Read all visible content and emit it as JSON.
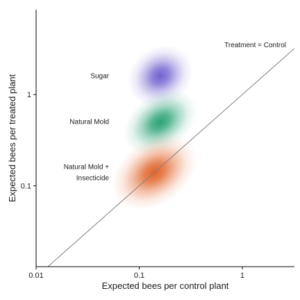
{
  "chart_data": {
    "type": "scatter",
    "render_style": "density-blob",
    "xlabel": "Expected bees per control plant",
    "ylabel": "Expected bees per treated plant",
    "x_scale": "log",
    "y_scale": "log",
    "xlim": [
      0.01,
      3.2
    ],
    "ylim": [
      0.013,
      8.5
    ],
    "x_ticks": [
      {
        "value": 0.01,
        "label": "0.01"
      },
      {
        "value": 0.1,
        "label": "0.1"
      },
      {
        "value": 1,
        "label": "1"
      }
    ],
    "y_ticks": [
      {
        "value": 0.1,
        "label": "0.1"
      },
      {
        "value": 1,
        "label": "1"
      }
    ],
    "grid": false,
    "reference_line": {
      "label": "Treatment = Control",
      "slope": 1,
      "color": "#808080"
    },
    "series": [
      {
        "label_lines": [
          "Sugar"
        ],
        "color": "#6a5acd",
        "center": {
          "x": 0.16,
          "y": 1.6
        },
        "spread_x": [
          0.07,
          0.32
        ],
        "spread_y": [
          0.75,
          3.2
        ]
      },
      {
        "label_lines": [
          "Natural Mold"
        ],
        "color": "#1f9e6e",
        "center": {
          "x": 0.16,
          "y": 0.5
        },
        "spread_x": [
          0.06,
          0.36
        ],
        "spread_y": [
          0.24,
          0.95
        ]
      },
      {
        "label_lines": [
          "Natural Mold +",
          "Insecticide"
        ],
        "color": "#e05a1c",
        "center": {
          "x": 0.14,
          "y": 0.14
        },
        "spread_x": [
          0.045,
          0.36
        ],
        "spread_y": [
          0.06,
          0.3
        ]
      }
    ]
  }
}
